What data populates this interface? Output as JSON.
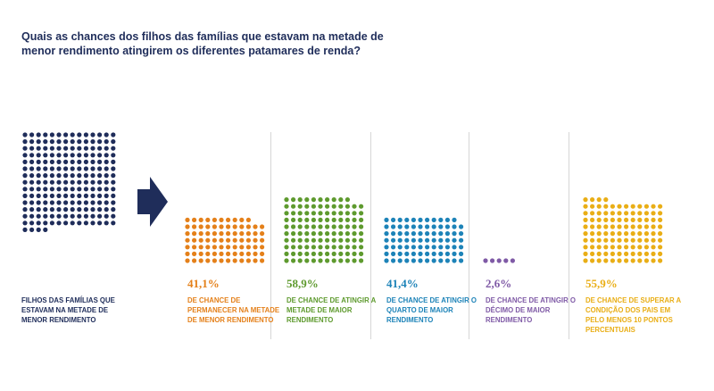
{
  "title": "Quais as chances dos filhos das famílias que estavam na metade de menor rendimento atingirem os diferentes patamares de renda?",
  "source_group": {
    "label": "FILHOS DAS FAMÍLIAS QUE ESTAVAM NA METADE DE MENOR RENDIMENTO",
    "color": "#1f2d5a"
  },
  "chart_data": {
    "type": "dot-matrix",
    "title": "Quais as chances dos filhos das famílias que estavam na metade de menor rendimento atingirem os diferentes patamares de renda?",
    "total_dots": 200,
    "categories": [
      {
        "value": 41.1,
        "value_label": "41,1%",
        "label": "DE CHANCE DE PERMANECER NA METADE DE MENOR RENDIMENTO",
        "color": "#e4801a"
      },
      {
        "value": 58.9,
        "value_label": "58,9%",
        "label": "DE CHANCE DE ATINGIR A METADE DE MAIOR RENDIMENTO",
        "color": "#5e9a2e"
      },
      {
        "value": 41.4,
        "value_label": "41,4%",
        "label": "DE CHANCE DE ATINGIR O QUARTO DE MAIOR RENDIMENTO",
        "color": "#1d83b8"
      },
      {
        "value": 2.6,
        "value_label": "2,6%",
        "label": "DE CHANCE DE ATINGIR O DÉCIMO DE MAIOR RENDIMENTO",
        "color": "#7f5aa6"
      },
      {
        "value": 55.9,
        "value_label": "55,9%",
        "label": "DE CHANCE DE SUPERAR A CONDIÇÃO DOS PAIS EM PELO MENOS 10 PONTOS PERCENTUAIS",
        "color": "#e9ae16"
      }
    ]
  }
}
